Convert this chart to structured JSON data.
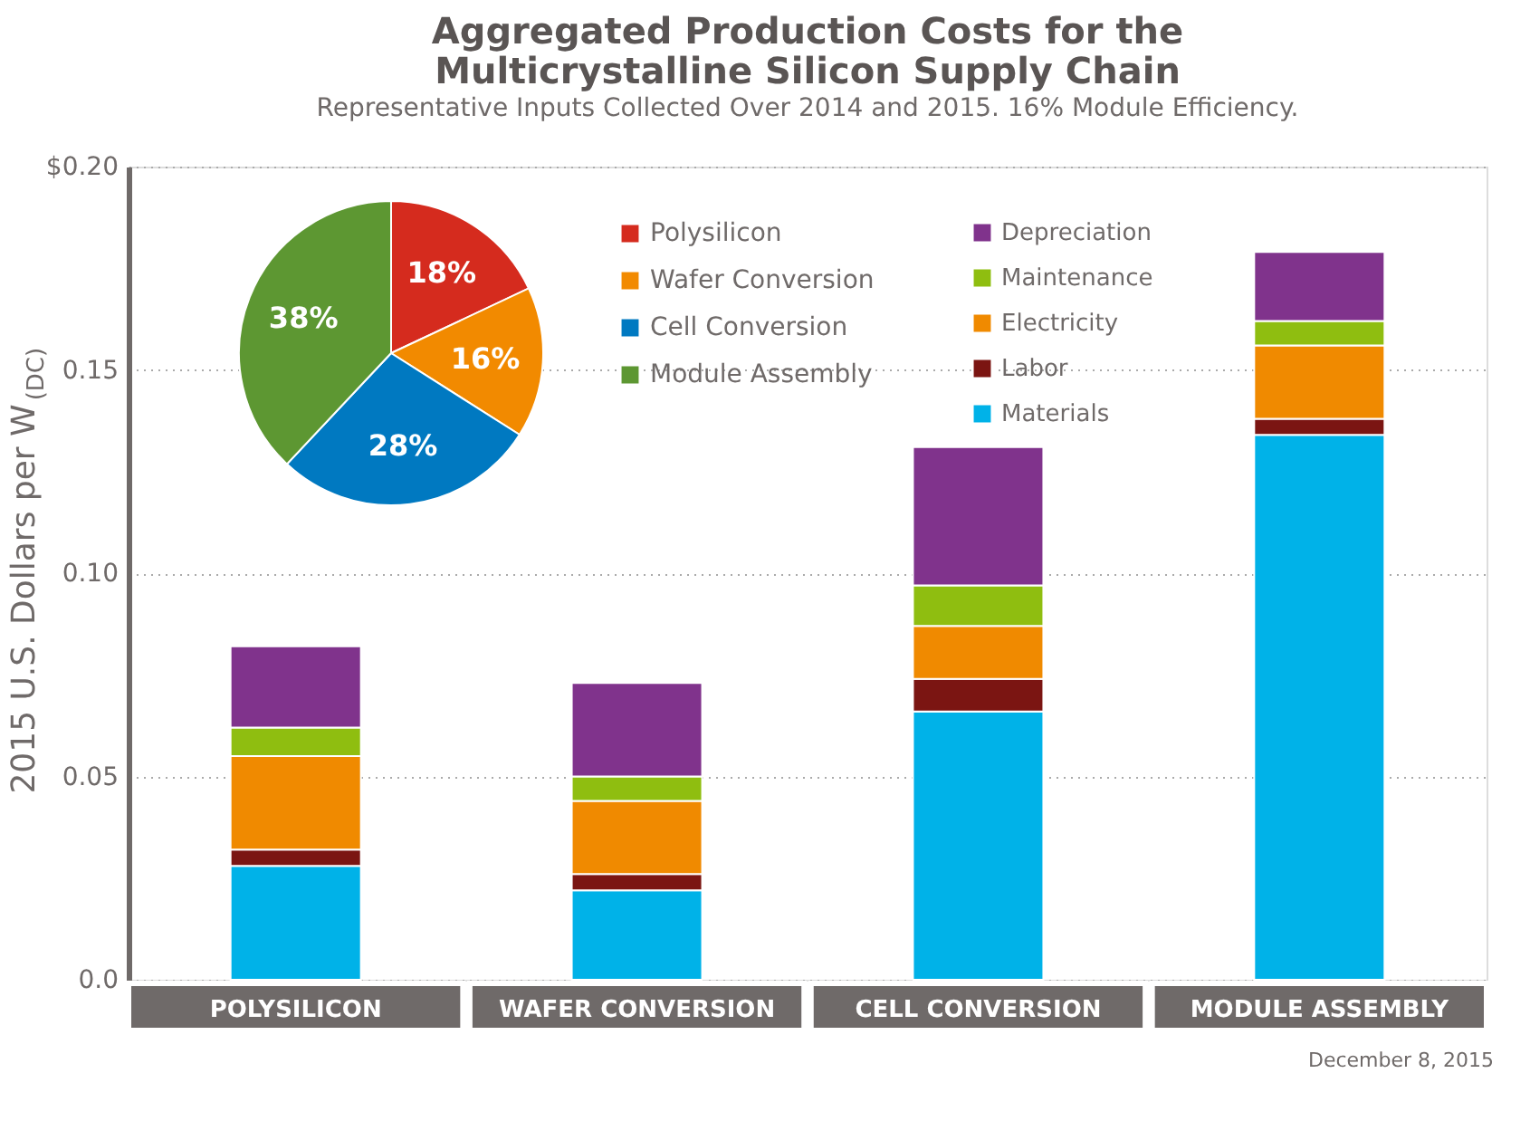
{
  "chart_data": [
    {
      "type": "bar",
      "title": "Aggregated Production Costs for the\nMulticrystalline Silicon Supply Chain",
      "subtitle": "Representative Inputs Collected Over 2014 and 2015.  16% Module Efficiency.",
      "ylabel": "2015 U.S. Dollars per W$_{(DC)}$",
      "stacked": true,
      "categories": [
        "POLYSILICON",
        "WAFER CONVERSION",
        "CELL CONVERSION",
        "MODULE ASSEMBLY"
      ],
      "series": [
        {
          "name": "Materials",
          "color": "#00b2e8",
          "values": [
            0.028,
            0.022,
            0.066,
            0.134
          ]
        },
        {
          "name": "Labor",
          "color": "#7b1512",
          "values": [
            0.004,
            0.004,
            0.008,
            0.004
          ]
        },
        {
          "name": "Electricity",
          "color": "#f08a00",
          "values": [
            0.023,
            0.018,
            0.013,
            0.018
          ]
        },
        {
          "name": "Maintenance",
          "color": "#8fbe10",
          "values": [
            0.007,
            0.006,
            0.01,
            0.006
          ]
        },
        {
          "name": "Depreciation",
          "color": "#80338c",
          "values": [
            0.02,
            0.023,
            0.034,
            0.017
          ]
        }
      ],
      "ylim": [
        0,
        0.2
      ],
      "yticks": [
        {
          "value": 0,
          "label": "0.0"
        },
        0.05,
        {
          "value": 0.1,
          "label": "0.10"
        },
        0.15,
        {
          "value": 0.2,
          "label": "$0.20"
        }
      ],
      "grid": "y",
      "legend": "top right",
      "annotations": [
        "December 8, 2015"
      ]
    },
    {
      "type": "pie",
      "categories": [
        "Polysilicon",
        "Wafer Conversion",
        "Cell Conversion",
        "Module Assembly"
      ],
      "values": [
        18,
        16,
        28,
        38
      ],
      "colors": [
        "#d52b1e",
        "#f28a00",
        "#0079c1",
        "#5d9732"
      ],
      "value_labels": [
        "18%",
        "16%",
        "28%",
        "38%"
      ],
      "legend": "right"
    }
  ]
}
